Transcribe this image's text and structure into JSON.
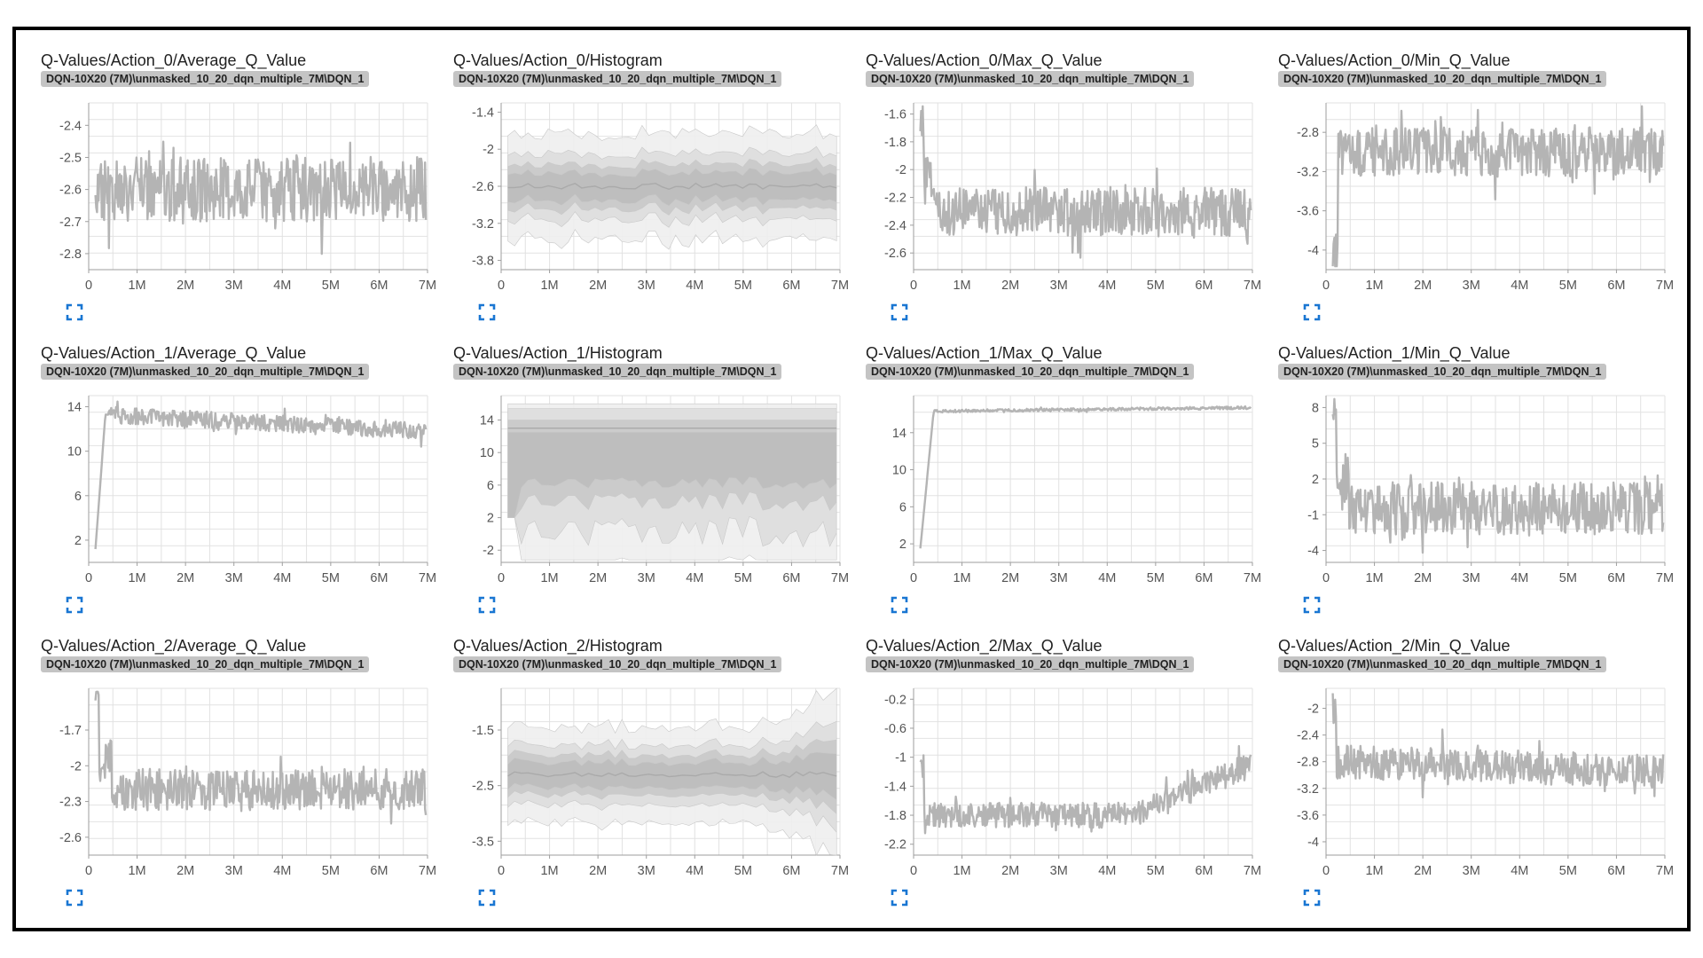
{
  "chart_data": [
    {
      "type": "line",
      "title": "Q-Values/Action_0/Average_Q_Value",
      "run_label": "DQN-10X20 (7M)\\unmasked_10_20_dqn_multiple_7M\\DQN_1",
      "xlim": [
        0,
        7000000
      ],
      "ylim": [
        -2.85,
        -2.33
      ],
      "yticks": [
        -2.4,
        -2.5,
        -2.6,
        -2.7,
        -2.8
      ],
      "ytick_labels": [
        "-2.4",
        "-2.5",
        "-2.6",
        "-2.7",
        "-2.8"
      ],
      "xticks": [
        0,
        1000000,
        2000000,
        3000000,
        4000000,
        5000000,
        6000000,
        7000000
      ],
      "xtick_labels": [
        "0",
        "1M",
        "2M",
        "3M",
        "4M",
        "5M",
        "6M",
        "7M"
      ],
      "grid": true,
      "series": [
        {
          "pattern": "noisy",
          "start": -2.55,
          "end": -2.6,
          "mean": -2.6,
          "spread": 0.2,
          "x_start": 0,
          "x_end": 7000000
        }
      ]
    },
    {
      "type": "area",
      "title": "Q-Values/Action_0/Histogram",
      "run_label": "DQN-10X20 (7M)\\unmasked_10_20_dqn_multiple_7M\\DQN_1",
      "xlim": [
        0,
        7000000
      ],
      "ylim": [
        -3.95,
        -1.25
      ],
      "yticks": [
        -1.4,
        -2,
        -2.6,
        -3.2,
        -3.8
      ],
      "ytick_labels": [
        "-1.4",
        "-2",
        "-2.6",
        "-3.2",
        "-3.8"
      ],
      "xticks": [
        0,
        1000000,
        2000000,
        3000000,
        4000000,
        5000000,
        6000000,
        7000000
      ],
      "xtick_labels": [
        "0",
        "1M",
        "2M",
        "3M",
        "4M",
        "5M",
        "6M",
        "7M"
      ],
      "grid": true,
      "series": [
        {
          "pattern": "histogram",
          "center": -2.6,
          "inner": 0.25,
          "outer": 0.6,
          "x_start": 0,
          "x_end": 7000000
        }
      ]
    },
    {
      "type": "line",
      "title": "Q-Values/Action_0/Max_Q_Value",
      "run_label": "DQN-10X20 (7M)\\unmasked_10_20_dqn_multiple_7M\\DQN_1",
      "xlim": [
        0,
        7000000
      ],
      "ylim": [
        -2.72,
        -1.52
      ],
      "yticks": [
        -1.6,
        -1.8,
        -2,
        -2.2,
        -2.4,
        -2.6
      ],
      "ytick_labels": [
        "-1.6",
        "-1.8",
        "-2",
        "-2.2",
        "-2.4",
        "-2.6"
      ],
      "xticks": [
        0,
        1000000,
        2000000,
        3000000,
        4000000,
        5000000,
        6000000,
        7000000
      ],
      "xtick_labels": [
        "0",
        "1M",
        "2M",
        "3M",
        "4M",
        "5M",
        "6M",
        "7M"
      ],
      "grid": true,
      "series": [
        {
          "pattern": "spike_decay",
          "start": -1.6,
          "end": -2.3,
          "mean": -2.3,
          "spread": 0.35,
          "x_start": 0,
          "x_end": 7000000
        }
      ]
    },
    {
      "type": "line",
      "title": "Q-Values/Action_0/Min_Q_Value",
      "run_label": "DQN-10X20 (7M)\\unmasked_10_20_dqn_multiple_7M\\DQN_1",
      "xlim": [
        0,
        7000000
      ],
      "ylim": [
        -4.2,
        -2.5
      ],
      "yticks": [
        -2.8,
        -3.2,
        -3.6,
        -4
      ],
      "ytick_labels": [
        "-2.8",
        "-3.2",
        "-3.6",
        "-4"
      ],
      "xticks": [
        0,
        1000000,
        2000000,
        3000000,
        4000000,
        5000000,
        6000000,
        7000000
      ],
      "xtick_labels": [
        "0",
        "1M",
        "2M",
        "3M",
        "4M",
        "5M",
        "6M",
        "7M"
      ],
      "grid": true,
      "series": [
        {
          "pattern": "dip_then_noisy",
          "start": -4.05,
          "end": -3.0,
          "mean": -3.0,
          "spread": 0.5,
          "x_start": 0,
          "x_end": 7000000
        }
      ]
    },
    {
      "type": "line",
      "title": "Q-Values/Action_1/Average_Q_Value",
      "run_label": "DQN-10X20 (7M)\\unmasked_10_20_dqn_multiple_7M\\DQN_1",
      "xlim": [
        0,
        7000000
      ],
      "ylim": [
        0,
        15
      ],
      "yticks": [
        14,
        10,
        6,
        2
      ],
      "ytick_labels": [
        "14",
        "10",
        "6",
        "2"
      ],
      "xticks": [
        0,
        1000000,
        2000000,
        3000000,
        4000000,
        5000000,
        6000000,
        7000000
      ],
      "xtick_labels": [
        "0",
        "1M",
        "2M",
        "3M",
        "4M",
        "5M",
        "6M",
        "7M"
      ],
      "grid": true,
      "series": [
        {
          "pattern": "rise_plateau",
          "start": 1.2,
          "end": 11.8,
          "mean": 13,
          "spread": 1.5,
          "x_start": 0,
          "x_end": 7000000
        }
      ]
    },
    {
      "type": "area",
      "title": "Q-Values/Action_1/Histogram",
      "run_label": "DQN-10X20 (7M)\\unmasked_10_20_dqn_multiple_7M\\DQN_1",
      "xlim": [
        0,
        7000000
      ],
      "ylim": [
        -3.5,
        17
      ],
      "yticks": [
        14,
        10,
        6,
        2,
        -2
      ],
      "ytick_labels": [
        "14",
        "10",
        "6",
        "2",
        "-2"
      ],
      "xticks": [
        0,
        1000000,
        2000000,
        3000000,
        4000000,
        5000000,
        6000000,
        7000000
      ],
      "xtick_labels": [
        "0",
        "1M",
        "2M",
        "3M",
        "4M",
        "5M",
        "6M",
        "7M"
      ],
      "grid": true,
      "series": [
        {
          "pattern": "histogram_wide",
          "center": 10,
          "inner": 5,
          "outer": 13,
          "x_start": 0,
          "x_end": 7000000
        }
      ]
    },
    {
      "type": "line",
      "title": "Q-Values/Action_1/Max_Q_Value",
      "run_label": "DQN-10X20 (7M)\\unmasked_10_20_dqn_multiple_7M\\DQN_1",
      "xlim": [
        0,
        7000000
      ],
      "ylim": [
        0,
        18
      ],
      "yticks": [
        14,
        10,
        6,
        2
      ],
      "ytick_labels": [
        "14",
        "10",
        "6",
        "2"
      ],
      "xticks": [
        0,
        1000000,
        2000000,
        3000000,
        4000000,
        5000000,
        6000000,
        7000000
      ],
      "xtick_labels": [
        "0",
        "1M",
        "2M",
        "3M",
        "4M",
        "5M",
        "6M",
        "7M"
      ],
      "grid": true,
      "series": [
        {
          "pattern": "rise_flat",
          "start": 1.5,
          "end": 16.8,
          "mean": 16.6,
          "spread": 0.3,
          "x_start": 0,
          "x_end": 7000000
        }
      ]
    },
    {
      "type": "line",
      "title": "Q-Values/Action_1/Min_Q_Value",
      "run_label": "DQN-10X20 (7M)\\unmasked_10_20_dqn_multiple_7M\\DQN_1",
      "xlim": [
        0,
        7000000
      ],
      "ylim": [
        -5,
        9
      ],
      "yticks": [
        8,
        5,
        2,
        -1,
        -4
      ],
      "ytick_labels": [
        "8",
        "5",
        "2",
        "-1",
        "-4"
      ],
      "xticks": [
        0,
        1000000,
        2000000,
        3000000,
        4000000,
        5000000,
        6000000,
        7000000
      ],
      "xtick_labels": [
        "0",
        "1M",
        "2M",
        "3M",
        "4M",
        "5M",
        "6M",
        "7M"
      ],
      "grid": true,
      "series": [
        {
          "pattern": "spike_decay",
          "start": 7.5,
          "end": -1.5,
          "mean": -0.5,
          "spread": 4.5,
          "x_start": 0,
          "x_end": 7000000
        }
      ]
    },
    {
      "type": "line",
      "title": "Q-Values/Action_2/Average_Q_Value",
      "run_label": "DQN-10X20 (7M)\\unmasked_10_20_dqn_multiple_7M\\DQN_1",
      "xlim": [
        0,
        7000000
      ],
      "ylim": [
        -2.75,
        -1.35
      ],
      "yticks": [
        -1.7,
        -2,
        -2.3,
        -2.6
      ],
      "ytick_labels": [
        "-1.7",
        "-2",
        "-2.3",
        "-2.6"
      ],
      "xticks": [
        0,
        1000000,
        2000000,
        3000000,
        4000000,
        5000000,
        6000000,
        7000000
      ],
      "xtick_labels": [
        "0",
        "1M",
        "2M",
        "3M",
        "4M",
        "5M",
        "6M",
        "7M"
      ],
      "grid": true,
      "series": [
        {
          "pattern": "spike_decay",
          "start": -1.4,
          "end": -2.2,
          "mean": -2.2,
          "spread": 0.35,
          "x_start": 0,
          "x_end": 7000000
        }
      ]
    },
    {
      "type": "area",
      "title": "Q-Values/Action_2/Histogram",
      "run_label": "DQN-10X20 (7M)\\unmasked_10_20_dqn_multiple_7M\\DQN_1",
      "xlim": [
        0,
        7000000
      ],
      "ylim": [
        -3.75,
        -0.75
      ],
      "yticks": [
        -1.5,
        -2.5,
        -3.5
      ],
      "ytick_labels": [
        "-1.5",
        "-2.5",
        "-3.5"
      ],
      "xticks": [
        0,
        1000000,
        2000000,
        3000000,
        4000000,
        5000000,
        6000000,
        7000000
      ],
      "xtick_labels": [
        "0",
        "1M",
        "2M",
        "3M",
        "4M",
        "5M",
        "6M",
        "7M"
      ],
      "grid": true,
      "series": [
        {
          "pattern": "histogram_flare",
          "center": -2.3,
          "inner": 0.25,
          "outer": 0.6,
          "x_start": 0,
          "x_end": 7000000
        }
      ]
    },
    {
      "type": "line",
      "title": "Q-Values/Action_2/Max_Q_Value",
      "run_label": "DQN-10X20 (7M)\\unmasked_10_20_dqn_multiple_7M\\DQN_1",
      "xlim": [
        0,
        7000000
      ],
      "ylim": [
        -2.35,
        -0.05
      ],
      "yticks": [
        -0.2,
        -0.6,
        -1,
        -1.4,
        -1.8,
        -2.2
      ],
      "ytick_labels": [
        "-0.2",
        "-0.6",
        "-1",
        "-1.4",
        "-1.8",
        "-2.2"
      ],
      "xticks": [
        0,
        1000000,
        2000000,
        3000000,
        4000000,
        5000000,
        6000000,
        7000000
      ],
      "xtick_labels": [
        "0",
        "1M",
        "2M",
        "3M",
        "4M",
        "5M",
        "6M",
        "7M"
      ],
      "grid": true,
      "series": [
        {
          "pattern": "dip_then_rise",
          "start": -1.1,
          "end": -1.1,
          "mean": -1.8,
          "spread": 0.35,
          "x_start": 0,
          "x_end": 7000000
        }
      ]
    },
    {
      "type": "line",
      "title": "Q-Values/Action_2/Min_Q_Value",
      "run_label": "DQN-10X20 (7M)\\unmasked_10_20_dqn_multiple_7M\\DQN_1",
      "xlim": [
        0,
        7000000
      ],
      "ylim": [
        -4.2,
        -1.7
      ],
      "yticks": [
        -2,
        -2.4,
        -2.8,
        -3.2,
        -3.6,
        -4
      ],
      "ytick_labels": [
        "-2",
        "-2.4",
        "-2.8",
        "-3.2",
        "-3.6",
        "-4"
      ],
      "xticks": [
        0,
        1000000,
        2000000,
        3000000,
        4000000,
        5000000,
        6000000,
        7000000
      ],
      "xtick_labels": [
        "0",
        "1M",
        "2M",
        "3M",
        "4M",
        "5M",
        "6M",
        "7M"
      ],
      "grid": true,
      "series": [
        {
          "pattern": "spike_decay_down",
          "start": -2.0,
          "end": -3.2,
          "mean": -2.8,
          "spread": 0.5,
          "x_start": 0,
          "x_end": 7000000
        }
      ]
    }
  ],
  "colors": {
    "line": "#b4b4b4",
    "grid": "#e2e2e2",
    "axis": "#9e9e9e",
    "band_outer": "#eeeeee",
    "band_mid": "#dddddd",
    "band_inner": "#c9c9c9",
    "expand_icon": "#1976d2",
    "run_tag_bg": "#c4c4c4"
  },
  "icons": {
    "expand": "expand-icon"
  }
}
